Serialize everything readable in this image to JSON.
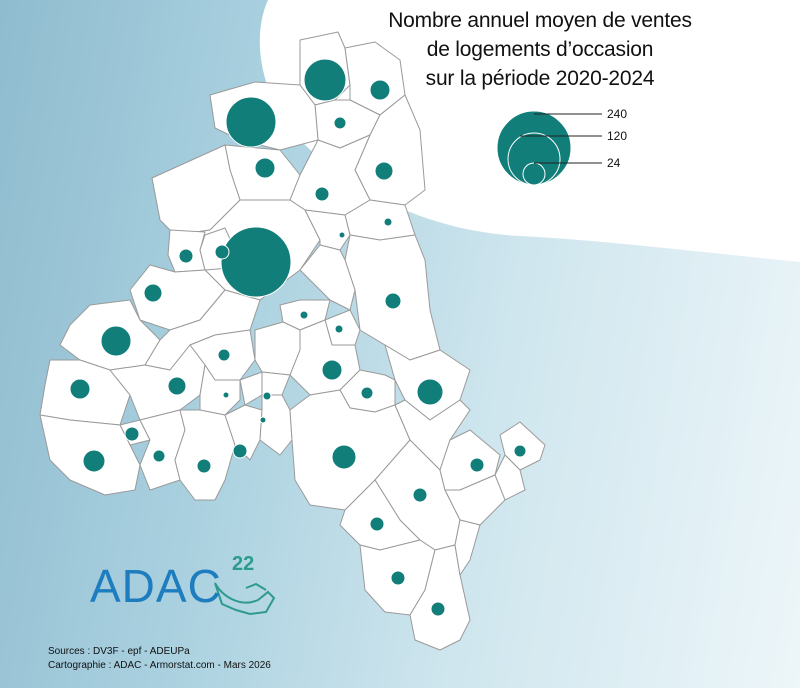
{
  "title": {
    "line1": "Nombre annuel moyen de ventes",
    "line2": "de logements d’occasion",
    "line3": "sur la période 2020-2024"
  },
  "legend": {
    "values": [
      "240",
      "120",
      "24"
    ],
    "symbol_color": "#127e7a"
  },
  "colors": {
    "commune_fill": "#ffffff",
    "commune_stroke": "#9a9a9a",
    "brand_blue": "#1d7dbf",
    "brand_green": "#2e9a8e"
  },
  "sources": {
    "line1": "Sources : DV3F - epf - ADEUPa",
    "line2": "Cartographie : ADAC - Armorstat.com - Mars 2026"
  },
  "brand": {
    "name": "ADAC",
    "number": "22",
    "icon": "cotes-d-armor-outline-icon"
  }
}
